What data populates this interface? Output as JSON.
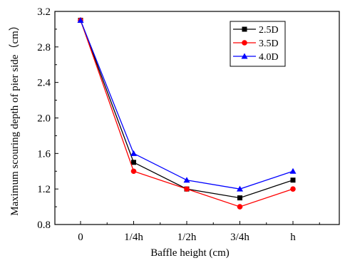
{
  "chart_data": {
    "type": "line",
    "title": "",
    "xlabel": "Baffle height (cm)",
    "ylabel": "Maximum scouring depth of pier side（cm）",
    "categories": [
      "0",
      "1/4h",
      "1/2h",
      "3/4h",
      "h"
    ],
    "ylim": [
      0.8,
      3.2
    ],
    "yticks": [
      "0.8",
      "1.2",
      "1.6",
      "2.0",
      "2.4",
      "2.8",
      "3.2"
    ],
    "grid": false,
    "legend_position": "top-right",
    "series": [
      {
        "name": "2.5D",
        "color": "#000000",
        "marker": "square",
        "values": [
          3.1,
          1.5,
          1.2,
          1.1,
          1.3
        ]
      },
      {
        "name": "3.5D",
        "color": "#ff0000",
        "marker": "circle",
        "values": [
          3.1,
          1.4,
          1.2,
          1.0,
          1.2
        ]
      },
      {
        "name": "4.0D",
        "color": "#0000ff",
        "marker": "triangle",
        "values": [
          3.1,
          1.6,
          1.3,
          1.2,
          1.4
        ]
      }
    ]
  }
}
